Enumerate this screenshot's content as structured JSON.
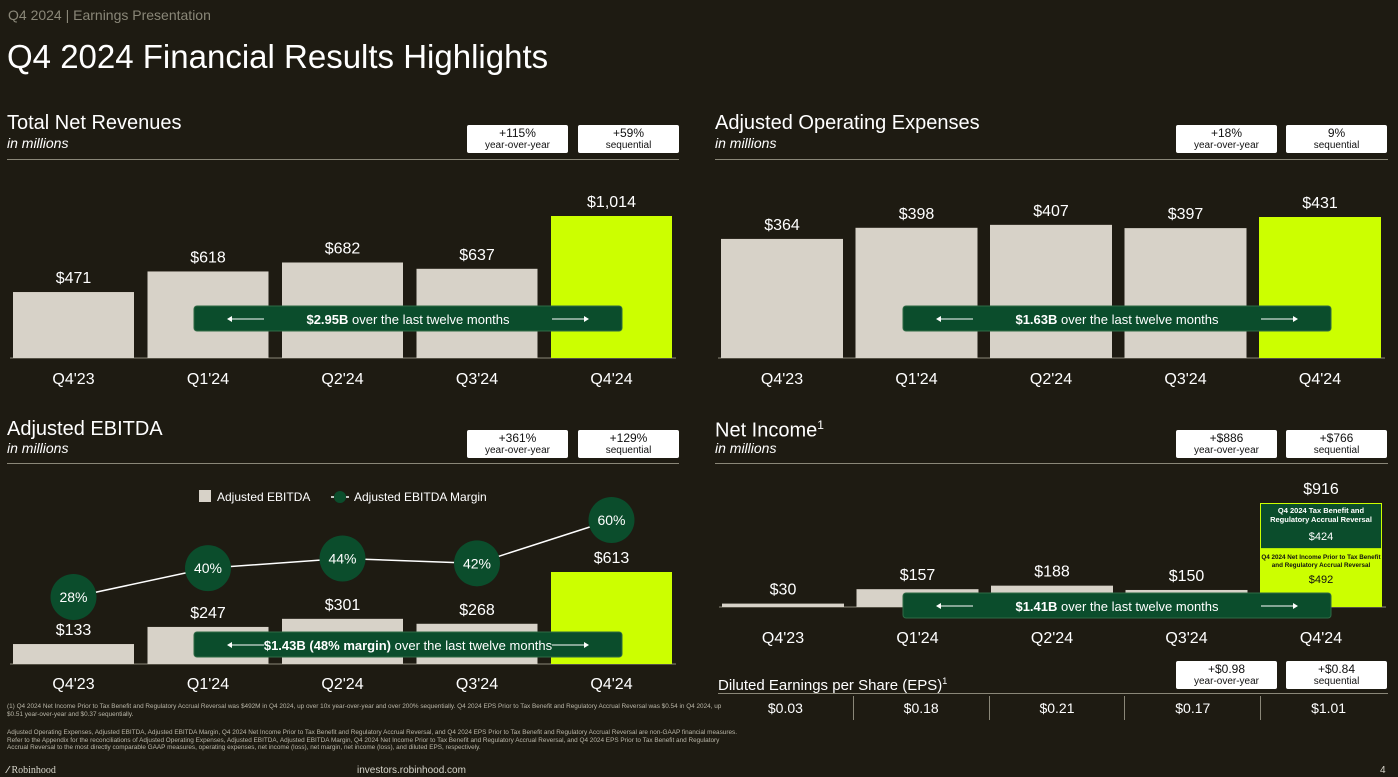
{
  "header": {
    "eyebrow": "Q4 2024 | Earnings Presentation",
    "title": "Q4 2024 Financial Results Highlights"
  },
  "colors": {
    "background": "#1e1b12",
    "bar_gray": "#d7d2c8",
    "bar_highlight": "#ccff00",
    "pill_green": "#0b4d2c",
    "divider": "#8a8778"
  },
  "chart_data": [
    {
      "id": "revenues",
      "type": "bar",
      "title": "Total Net Revenues",
      "subtitle": "in millions",
      "categories": [
        "Q4'23",
        "Q1'24",
        "Q2'24",
        "Q3'24",
        "Q4'24"
      ],
      "values": [
        471,
        618,
        682,
        637,
        1014
      ],
      "labels": [
        "$471",
        "$618",
        "$682",
        "$637",
        "$1,014"
      ],
      "highlight_index": 4,
      "ylim": [
        0,
        1014
      ],
      "badges": [
        {
          "value": "+115%",
          "label": "year-over-year"
        },
        {
          "value": "+59%",
          "label": "sequential"
        }
      ],
      "pill": {
        "bold": "$2.95B",
        "text": " over the last twelve months"
      }
    },
    {
      "id": "opex",
      "type": "bar",
      "title": "Adjusted Operating Expenses",
      "subtitle": "in millions",
      "categories": [
        "Q4'23",
        "Q1'24",
        "Q2'24",
        "Q3'24",
        "Q4'24"
      ],
      "values": [
        364,
        398,
        407,
        397,
        431
      ],
      "labels": [
        "$364",
        "$398",
        "$407",
        "$397",
        "$431"
      ],
      "highlight_index": 4,
      "ylim": [
        0,
        431
      ],
      "badges": [
        {
          "value": "+18%",
          "label": "year-over-year"
        },
        {
          "value": "9%",
          "label": "sequential"
        }
      ],
      "pill": {
        "bold": "$1.63B",
        "text": " over the last twelve months"
      }
    },
    {
      "id": "ebitda",
      "type": "bar",
      "title": "Adjusted EBITDA",
      "subtitle": "in millions",
      "categories": [
        "Q4'23",
        "Q1'24",
        "Q2'24",
        "Q3'24",
        "Q4'24"
      ],
      "values": [
        133,
        247,
        301,
        268,
        613
      ],
      "labels": [
        "$133",
        "$247",
        "$301",
        "$268",
        "$613"
      ],
      "highlight_index": 4,
      "ylim": [
        0,
        613
      ],
      "margin_series": {
        "name": "Adjusted EBITDA Margin",
        "values": [
          28,
          40,
          44,
          42,
          60
        ],
        "labels": [
          "28%",
          "40%",
          "44%",
          "42%",
          "60%"
        ]
      },
      "legend": [
        "Adjusted EBITDA",
        "Adjusted EBITDA Margin"
      ],
      "badges": [
        {
          "value": "+361%",
          "label": "year-over-year"
        },
        {
          "value": "+129%",
          "label": "sequential"
        }
      ],
      "pill": {
        "bold": "$1.43B (48% margin)",
        "text": " over the last twelve months"
      }
    },
    {
      "id": "netincome",
      "type": "bar",
      "title": "Net Income",
      "title_sup": "1",
      "subtitle": "in millions",
      "categories": [
        "Q4'23",
        "Q1'24",
        "Q2'24",
        "Q3'24",
        "Q4'24"
      ],
      "values": [
        30,
        157,
        188,
        150,
        916
      ],
      "labels": [
        "$30",
        "$157",
        "$188",
        "$150",
        "$916"
      ],
      "highlight_index": 4,
      "ylim": [
        0,
        916
      ],
      "stack_last": [
        {
          "label": "Q4 2024 Tax Benefit and Regulatory Accrual Reversal",
          "value": 424,
          "value_label": "$424"
        },
        {
          "label": "Q4 2024 Net Income Prior to Tax Benefit and Regulatory Accrual Reversal",
          "value": 492,
          "value_label": "$492"
        }
      ],
      "badges": [
        {
          "value": "+$886",
          "label": "year-over-year"
        },
        {
          "value": "+$766",
          "label": "sequential"
        }
      ],
      "pill": {
        "bold": "$1.41B",
        "text": " over the last twelve months"
      }
    }
  ],
  "eps": {
    "title": "Diluted Earnings per Share (EPS)",
    "title_sup": "1",
    "values": [
      "$0.03",
      "$0.18",
      "$0.21",
      "$0.17",
      "$1.01"
    ],
    "badges": [
      {
        "value": "+$0.98",
        "label": "year-over-year"
      },
      {
        "value": "+$0.84",
        "label": "sequential"
      }
    ]
  },
  "footnotes": {
    "note1": "(1) Q4 2024 Net Income Prior to Tax Benefit and Regulatory Accrual Reversal was $492M in Q4 2024, up over 10x year-over-year and over 200% sequentially. Q4 2024 EPS Prior to Tax Benefit and Regulatory Accrual Reversal was $0.54 in Q4 2024, up $0.51 year-over-year and $0.37 sequentially.",
    "note2": "Adjusted Operating Expenses, Adjusted EBITDA, Adjusted EBITDA Margin, Q4 2024 Net Income Prior to Tax Benefit and Regulatory Accrual Reversal, and Q4 2024 EPS Prior to Tax Benefit and Regulatory Accrual Reversal are non-GAAP financial measures. Refer to the Appendix for the reconciliations of Adjusted Operating Expenses, Adjusted EBITDA, Adjusted EBITDA Margin, Q4 2024 Net Income Prior to Tax Benefit and Regulatory Accrual Reversal, and Q4 2024 EPS Prior to Tax Benefit and Regulatory Accrual Reversal to the most directly comparable GAAP measures, operating expenses, net income (loss), net margin, net income (loss), and diluted EPS, respectively."
  },
  "footer": {
    "logo": "Robinhood",
    "url": "investors.robinhood.com",
    "page": "4"
  }
}
